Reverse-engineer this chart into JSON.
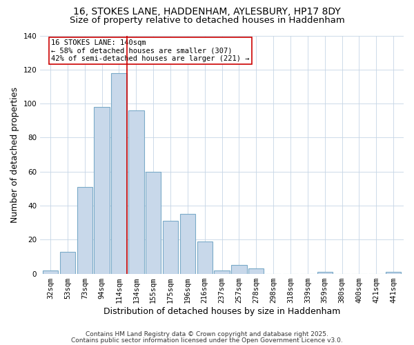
{
  "title_line1": "16, STOKES LANE, HADDENHAM, AYLESBURY, HP17 8DY",
  "title_line2": "Size of property relative to detached houses in Haddenham",
  "xlabel": "Distribution of detached houses by size in Haddenham",
  "ylabel": "Number of detached properties",
  "bar_labels": [
    "32sqm",
    "53sqm",
    "73sqm",
    "94sqm",
    "114sqm",
    "134sqm",
    "155sqm",
    "175sqm",
    "196sqm",
    "216sqm",
    "237sqm",
    "257sqm",
    "278sqm",
    "298sqm",
    "318sqm",
    "339sqm",
    "359sqm",
    "380sqm",
    "400sqm",
    "421sqm",
    "441sqm"
  ],
  "bar_values": [
    2,
    13,
    51,
    98,
    118,
    96,
    60,
    31,
    35,
    19,
    2,
    5,
    3,
    0,
    0,
    0,
    1,
    0,
    0,
    0,
    1
  ],
  "bar_color": "#c8d8ea",
  "bar_edgecolor": "#7aaac8",
  "ylim": [
    0,
    140
  ],
  "yticks": [
    0,
    20,
    40,
    60,
    80,
    100,
    120,
    140
  ],
  "marker_line_color": "#cc0000",
  "annotation_box_text": "16 STOKES LANE: 140sqm\n← 58% of detached houses are smaller (307)\n42% of semi-detached houses are larger (221) →",
  "annotation_box_edgecolor": "#cc0000",
  "annotation_box_facecolor": "#ffffff",
  "footer1": "Contains HM Land Registry data © Crown copyright and database right 2025.",
  "footer2": "Contains public sector information licensed under the Open Government Licence v3.0.",
  "background_color": "#ffffff",
  "grid_color": "#c5d5e5",
  "title_fontsize": 10,
  "subtitle_fontsize": 9.5,
  "axis_label_fontsize": 9,
  "tick_fontsize": 7.5,
  "annotation_fontsize": 7.5,
  "footer_fontsize": 6.5
}
